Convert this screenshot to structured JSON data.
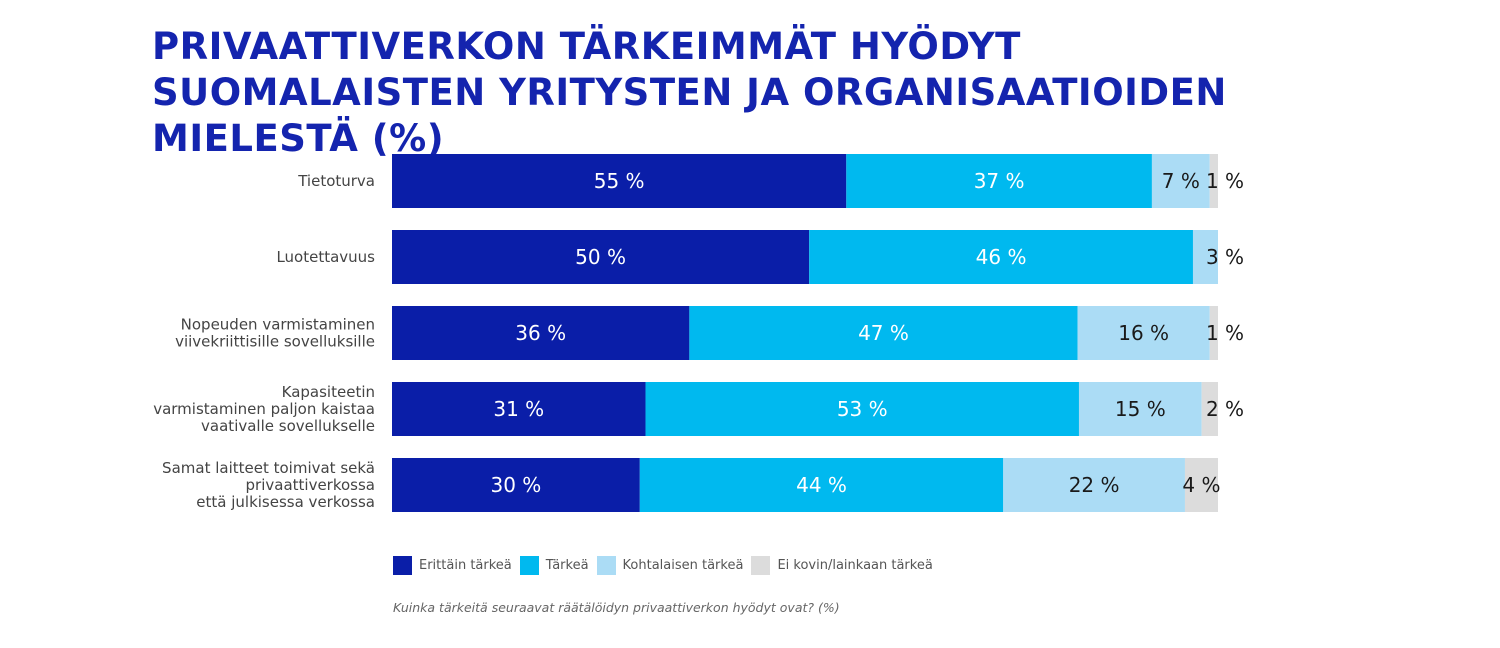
{
  "chart_data": {
    "type": "bar",
    "orientation": "horizontal",
    "stacked": true,
    "title": "PRIVAATTIVERKON TÄRKEIMMÄT HYÖDYT SUOMALAISTEN YRITYSTEN JA ORGANISAATIOIDEN MIELESTÄ (%)",
    "categories": [
      [
        "Tietoturva"
      ],
      [
        "Luotettavuus"
      ],
      [
        "Nopeuden varmistaminen",
        "viivekriittisille sovelluksille"
      ],
      [
        "Kapasiteetin",
        "varmistaminen paljon kaistaa",
        "vaativalle sovellukselle"
      ],
      [
        "Samat laitteet toimivat sekä",
        "privaattiverkossa",
        "että julkisessa verkossa"
      ]
    ],
    "series": [
      {
        "name": "Erittäin tärkeä",
        "color": "#0a1ea8",
        "text_color": "#ffffff",
        "values": [
          55,
          50,
          36,
          31,
          30
        ]
      },
      {
        "name": "Tärkeä",
        "color": "#00b9ef",
        "text_color": "#ffffff",
        "values": [
          37,
          46,
          47,
          53,
          44
        ]
      },
      {
        "name": "Kohtalaisen tärkeä",
        "color": "#abdcf5",
        "text_color": "#1a1a1a",
        "values": [
          7,
          3,
          16,
          15,
          22
        ]
      },
      {
        "name": "Ei kovin/lainkaan tärkeä",
        "color": "#dcdcdc",
        "text_color": "#1a1a1a",
        "values": [
          1,
          0,
          1,
          2,
          4
        ]
      }
    ],
    "value_suffix": " %",
    "legend_position": "bottom-left",
    "grid": false,
    "note": "Kuinka tärkeitä seuraavat räätälöidyn privaattiverkon hyödyt ovat? (%)"
  }
}
